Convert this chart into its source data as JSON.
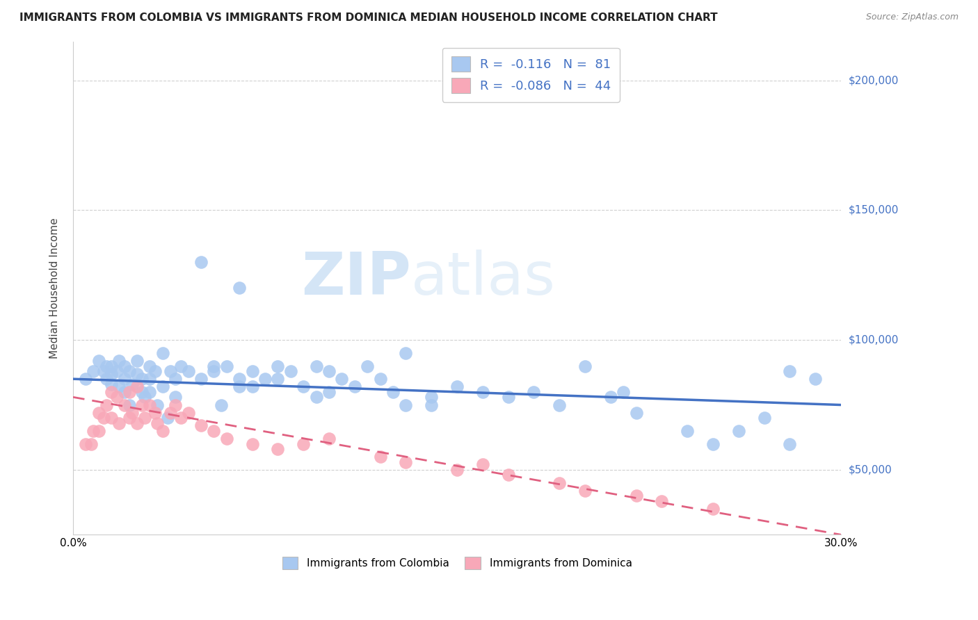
{
  "title": "IMMIGRANTS FROM COLOMBIA VS IMMIGRANTS FROM DOMINICA MEDIAN HOUSEHOLD INCOME CORRELATION CHART",
  "source": "Source: ZipAtlas.com",
  "ylabel": "Median Household Income",
  "xlim": [
    0.0,
    0.3
  ],
  "ylim": [
    25000,
    215000
  ],
  "yticks": [
    50000,
    100000,
    150000,
    200000
  ],
  "ytick_labels": [
    "$50,000",
    "$100,000",
    "$150,000",
    "$200,000"
  ],
  "xticks": [
    0.0,
    0.05,
    0.1,
    0.15,
    0.2,
    0.25,
    0.3
  ],
  "xtick_labels": [
    "0.0%",
    "",
    "",
    "",
    "",
    "",
    "30.0%"
  ],
  "colombia_R": -0.116,
  "colombia_N": 81,
  "dominica_R": -0.086,
  "dominica_N": 44,
  "colombia_color": "#a8c8f0",
  "dominica_color": "#f8a8b8",
  "colombia_line_color": "#4472c4",
  "dominica_line_color": "#e06080",
  "background_color": "#ffffff",
  "grid_color": "#d0d0d0",
  "colombia_scatter_x": [
    0.005,
    0.008,
    0.01,
    0.012,
    0.013,
    0.013,
    0.015,
    0.015,
    0.015,
    0.017,
    0.018,
    0.018,
    0.02,
    0.02,
    0.02,
    0.022,
    0.022,
    0.023,
    0.025,
    0.025,
    0.027,
    0.027,
    0.028,
    0.03,
    0.03,
    0.03,
    0.032,
    0.033,
    0.035,
    0.035,
    0.037,
    0.038,
    0.04,
    0.04,
    0.042,
    0.045,
    0.05,
    0.05,
    0.055,
    0.055,
    0.058,
    0.06,
    0.065,
    0.065,
    0.07,
    0.07,
    0.075,
    0.08,
    0.08,
    0.085,
    0.09,
    0.095,
    0.095,
    0.1,
    0.1,
    0.105,
    0.11,
    0.115,
    0.12,
    0.125,
    0.13,
    0.14,
    0.15,
    0.16,
    0.17,
    0.18,
    0.19,
    0.2,
    0.21,
    0.22,
    0.24,
    0.25,
    0.26,
    0.27,
    0.28,
    0.29,
    0.065,
    0.13,
    0.14,
    0.215,
    0.28
  ],
  "colombia_scatter_y": [
    85000,
    88000,
    92000,
    88000,
    85000,
    90000,
    90000,
    87000,
    83000,
    88000,
    82000,
    92000,
    90000,
    85000,
    80000,
    88000,
    75000,
    83000,
    92000,
    87000,
    85000,
    80000,
    78000,
    90000,
    85000,
    80000,
    88000,
    75000,
    82000,
    95000,
    70000,
    88000,
    85000,
    78000,
    90000,
    88000,
    130000,
    85000,
    90000,
    88000,
    75000,
    90000,
    85000,
    82000,
    88000,
    82000,
    85000,
    90000,
    85000,
    88000,
    82000,
    90000,
    78000,
    88000,
    80000,
    85000,
    82000,
    90000,
    85000,
    80000,
    75000,
    78000,
    82000,
    80000,
    78000,
    80000,
    75000,
    90000,
    78000,
    72000,
    65000,
    60000,
    65000,
    70000,
    60000,
    85000,
    120000,
    95000,
    75000,
    80000,
    88000
  ],
  "dominica_scatter_x": [
    0.005,
    0.007,
    0.008,
    0.01,
    0.01,
    0.012,
    0.013,
    0.015,
    0.015,
    0.017,
    0.018,
    0.02,
    0.022,
    0.022,
    0.023,
    0.025,
    0.025,
    0.027,
    0.028,
    0.03,
    0.032,
    0.033,
    0.035,
    0.038,
    0.04,
    0.042,
    0.045,
    0.05,
    0.055,
    0.06,
    0.07,
    0.08,
    0.09,
    0.1,
    0.12,
    0.13,
    0.15,
    0.16,
    0.17,
    0.19,
    0.2,
    0.22,
    0.23,
    0.25
  ],
  "dominica_scatter_y": [
    60000,
    60000,
    65000,
    72000,
    65000,
    70000,
    75000,
    80000,
    70000,
    78000,
    68000,
    75000,
    80000,
    70000,
    72000,
    82000,
    68000,
    75000,
    70000,
    75000,
    72000,
    68000,
    65000,
    72000,
    75000,
    70000,
    72000,
    67000,
    65000,
    62000,
    60000,
    58000,
    60000,
    62000,
    55000,
    53000,
    50000,
    52000,
    48000,
    45000,
    42000,
    40000,
    38000,
    35000
  ]
}
